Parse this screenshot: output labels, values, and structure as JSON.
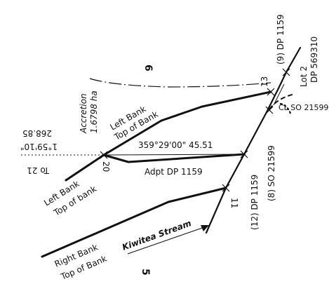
{
  "parcel_top": "6",
  "parcel_bottom": "5",
  "accretion": {
    "label": "Accretion",
    "area": "1.6798 ha"
  },
  "left_bank_upper": {
    "line1": "Left Bank",
    "line2": "Top of Bank"
  },
  "left_bank_lower": {
    "line1": "Left Bank",
    "line2": "Top of bank"
  },
  "right_bank": {
    "line1": "Right Bank",
    "line2": "Top of Bank"
  },
  "stream_name": "Kiwitea Stream",
  "bearing_distance": "359°29'00\" 45.51",
  "adopted_line": "Adpt DP 1159",
  "to_mark": {
    "bearing": "1°59'10\"",
    "distance": "268.85",
    "to": "To 21"
  },
  "marks": {
    "m20": "20",
    "m13": "13",
    "m11": "11",
    "dp1159_9": "(9) DP 1159",
    "dp1159_12": "(12) DP 1159",
    "so21599_8": "(8) SO 21599",
    "cl_so": "CL SO 21599",
    "lot2_a": "Lot 2",
    "lot2_b": "DP 569310"
  },
  "colors": {
    "ink": "#111111",
    "background": "#ffffff"
  }
}
